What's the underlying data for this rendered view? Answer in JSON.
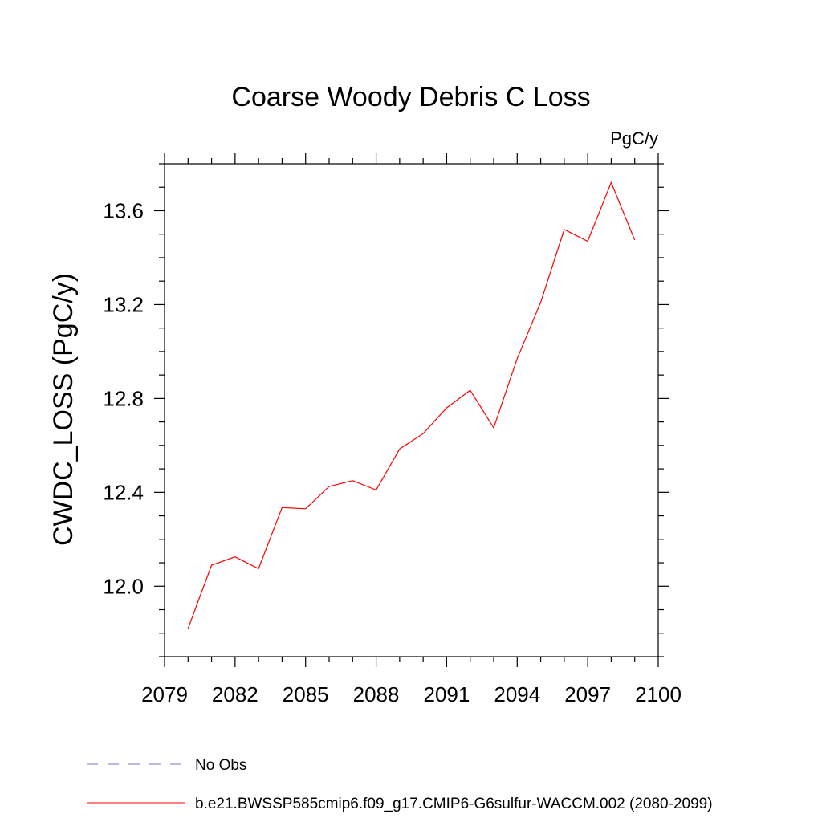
{
  "chart_data": {
    "type": "line",
    "title": "Coarse Woody Debris C Loss",
    "units": "PgC/y",
    "xlabel": "",
    "ylabel": "CWDC_LOSS  (PgC/y)",
    "xlim": [
      2079,
      2100
    ],
    "ylim": [
      11.7,
      13.8
    ],
    "xticks": [
      2079,
      2082,
      2085,
      2088,
      2091,
      2094,
      2097,
      2100
    ],
    "xtick_labels": [
      "2079",
      "2082",
      "2085",
      "2088",
      "2091",
      "2094",
      "2097",
      "2100"
    ],
    "yticks": [
      12.0,
      12.4,
      12.8,
      13.2,
      13.6
    ],
    "ytick_labels": [
      "12.0",
      "12.4",
      "12.8",
      "13.2",
      "13.6"
    ],
    "grid": false,
    "legend_position": "bottom",
    "series": [
      {
        "name": "b.e21.BWSSP585cmip6.f09_g17.CMIP6-G6sulfur-WACCM.002 (2080-2099)",
        "color": "#ff0000",
        "style": "solid",
        "x": [
          2080,
          2081,
          2082,
          2083,
          2084,
          2085,
          2086,
          2087,
          2088,
          2089,
          2090,
          2091,
          2092,
          2093,
          2094,
          2095,
          2096,
          2097,
          2098,
          2099
        ],
        "y": [
          11.82,
          12.09,
          12.125,
          12.075,
          12.335,
          12.33,
          12.425,
          12.45,
          12.41,
          12.585,
          12.65,
          12.76,
          12.835,
          12.675,
          12.97,
          13.21,
          13.52,
          13.47,
          13.72,
          13.475
        ]
      }
    ],
    "legend": [
      {
        "label": "No Obs",
        "color": "#7f6fd0",
        "style": "dashed"
      },
      {
        "label": "b.e21.BWSSP585cmip6.f09_g17.CMIP6-G6sulfur-WACCM.002 (2080-2099)",
        "color": "#ff0000",
        "style": "solid"
      }
    ]
  }
}
